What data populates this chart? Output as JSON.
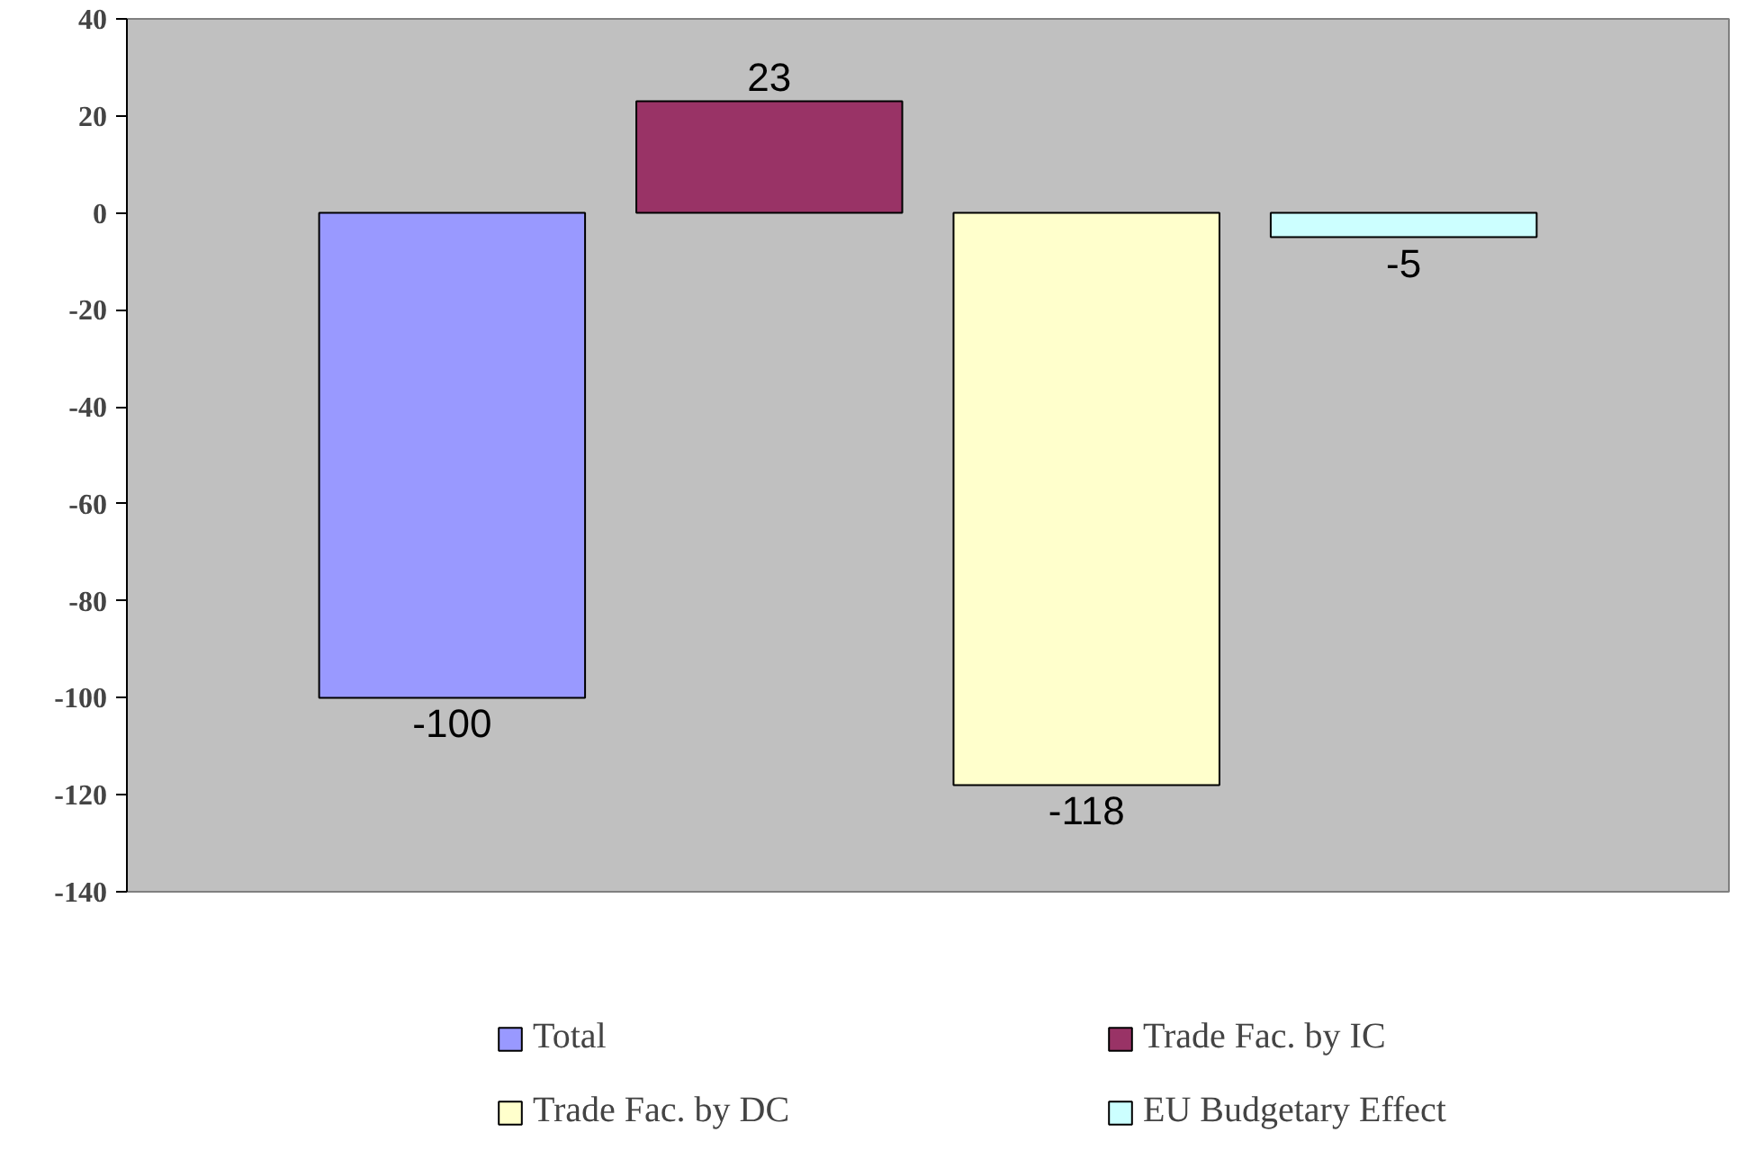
{
  "chart_data": {
    "type": "bar",
    "categories": [
      null
    ],
    "series": [
      {
        "name": "Total",
        "color": "#9999ff",
        "values": [
          -100
        ]
      },
      {
        "name": "Trade Fac. by IC",
        "color": "#993366",
        "values": [
          23
        ]
      },
      {
        "name": "Trade Fac. by DC",
        "color": "#ffffcc",
        "values": [
          -118
        ]
      },
      {
        "name": "EU Budgetary Effect",
        "color": "#ccffff",
        "values": [
          -5
        ]
      }
    ],
    "ylim": [
      -140,
      40
    ],
    "yticks": [
      -140,
      -120,
      -100,
      -80,
      -60,
      -40,
      -20,
      0,
      20,
      40
    ],
    "grid": false,
    "legend": "bottom",
    "data_labels": true,
    "tick_labels": "y"
  }
}
